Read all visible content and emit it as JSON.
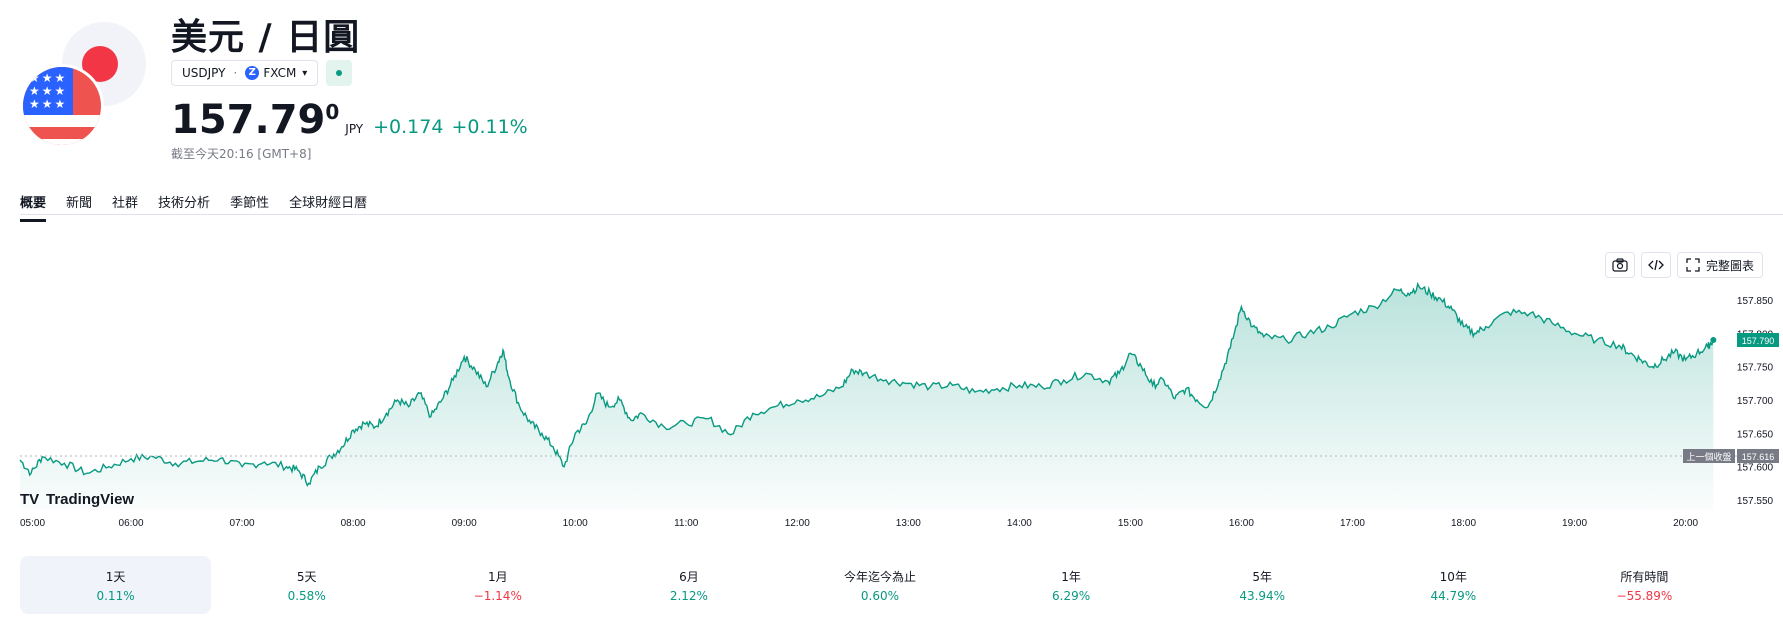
{
  "header": {
    "title": "美元 / 日圓",
    "symbol": "USDJPY",
    "separator": "·",
    "exchange": "FXCM",
    "exchange_icon": "Z",
    "price_main": "157.79",
    "price_sup": "0",
    "currency": "JPY",
    "change_abs": "+0.174",
    "change_pct": "+0.11%",
    "as_of": "截至今天20:16 [GMT+8]"
  },
  "tabs": [
    {
      "label": "概要"
    },
    {
      "label": "新聞"
    },
    {
      "label": "社群"
    },
    {
      "label": "技術分析"
    },
    {
      "label": "季節性"
    },
    {
      "label": "全球財經日曆"
    }
  ],
  "toolbar": {
    "camera_icon": "camera-icon",
    "embed_icon": "code-icon",
    "fullscreen_label": "完整圖表"
  },
  "colors": {
    "line": "#089981",
    "fill_top": "#089981",
    "up": "#089981",
    "down": "#f23645",
    "prev_close_badge": "#787b86"
  },
  "chart_data": {
    "type": "area",
    "x_ticks": [
      "05:00",
      "06:00",
      "07:00",
      "08:00",
      "09:00",
      "10:00",
      "11:00",
      "12:00",
      "13:00",
      "14:00",
      "15:00",
      "16:00",
      "17:00",
      "18:00",
      "19:00",
      "20:00"
    ],
    "y_ticks": [
      157.55,
      157.6,
      157.65,
      157.7,
      157.75,
      157.8,
      157.85
    ],
    "y_tick_labels": [
      "157.550",
      "157.600",
      "157.650",
      "157.700",
      "157.750",
      "157.800",
      "157.850"
    ],
    "ylim": [
      157.535,
      157.88
    ],
    "last_price": 157.79,
    "last_price_label": "157.790",
    "previous_close": 157.616,
    "previous_close_label": "157.616",
    "previous_close_text": "上一個收盤",
    "watermark": "TradingView",
    "x": [
      5.0,
      5.1,
      5.2,
      5.4,
      5.6,
      5.8,
      6.0,
      6.2,
      6.4,
      6.6,
      6.8,
      7.0,
      7.2,
      7.4,
      7.5,
      7.6,
      7.7,
      7.8,
      7.9,
      8.0,
      8.1,
      8.2,
      8.3,
      8.4,
      8.5,
      8.6,
      8.7,
      8.8,
      8.9,
      9.0,
      9.1,
      9.2,
      9.3,
      9.35,
      9.4,
      9.5,
      9.6,
      9.7,
      9.8,
      9.9,
      10.0,
      10.1,
      10.2,
      10.3,
      10.4,
      10.5,
      10.6,
      10.8,
      11.0,
      11.2,
      11.4,
      11.6,
      11.8,
      12.0,
      12.2,
      12.4,
      12.5,
      12.6,
      12.8,
      13.0,
      13.2,
      13.4,
      13.6,
      13.8,
      14.0,
      14.2,
      14.4,
      14.6,
      14.8,
      14.9,
      15.0,
      15.1,
      15.2,
      15.3,
      15.4,
      15.5,
      15.6,
      15.7,
      15.8,
      15.9,
      16.0,
      16.1,
      16.2,
      16.4,
      16.6,
      16.8,
      17.0,
      17.2,
      17.4,
      17.5,
      17.6,
      17.7,
      17.8,
      17.9,
      18.0,
      18.1,
      18.2,
      18.4,
      18.6,
      18.8,
      19.0,
      19.2,
      19.4,
      19.5,
      19.6,
      19.7,
      19.8,
      19.9,
      20.0,
      20.1,
      20.2,
      20.25
    ],
    "y": [
      157.61,
      157.59,
      157.615,
      157.605,
      157.59,
      157.6,
      157.612,
      157.615,
      157.605,
      157.608,
      157.612,
      157.6,
      157.607,
      157.6,
      157.595,
      157.575,
      157.6,
      157.615,
      157.63,
      157.655,
      157.665,
      157.66,
      157.68,
      157.7,
      157.69,
      157.71,
      157.675,
      157.7,
      157.73,
      157.765,
      157.745,
      157.72,
      157.755,
      157.775,
      157.735,
      157.69,
      157.665,
      157.65,
      157.63,
      157.6,
      157.65,
      157.665,
      157.71,
      157.69,
      157.7,
      157.67,
      157.68,
      157.66,
      157.665,
      157.672,
      157.648,
      157.68,
      157.69,
      157.7,
      157.705,
      157.72,
      157.745,
      157.74,
      157.73,
      157.725,
      157.72,
      157.722,
      157.712,
      157.717,
      157.722,
      157.72,
      157.73,
      157.74,
      157.728,
      157.74,
      157.77,
      157.75,
      157.722,
      157.73,
      157.702,
      157.717,
      157.7,
      157.69,
      157.73,
      157.778,
      157.84,
      157.81,
      157.795,
      157.79,
      157.8,
      157.81,
      157.83,
      157.84,
      157.865,
      157.86,
      157.87,
      157.86,
      157.85,
      157.835,
      157.81,
      157.8,
      157.81,
      157.832,
      157.83,
      157.815,
      157.8,
      157.79,
      157.782,
      157.77,
      157.76,
      157.75,
      157.76,
      157.772,
      157.76,
      157.77,
      157.78,
      157.79
    ]
  },
  "periods": [
    {
      "label": "1天",
      "value": "0.11%",
      "dir": "pos"
    },
    {
      "label": "5天",
      "value": "0.58%",
      "dir": "pos"
    },
    {
      "label": "1月",
      "value": "−1.14%",
      "dir": "neg"
    },
    {
      "label": "6月",
      "value": "2.12%",
      "dir": "pos"
    },
    {
      "label": "今年迄今為止",
      "value": "0.60%",
      "dir": "pos"
    },
    {
      "label": "1年",
      "value": "6.29%",
      "dir": "pos"
    },
    {
      "label": "5年",
      "value": "43.94%",
      "dir": "pos"
    },
    {
      "label": "10年",
      "value": "44.79%",
      "dir": "pos"
    },
    {
      "label": "所有時間",
      "value": "−55.89%",
      "dir": "neg"
    }
  ]
}
